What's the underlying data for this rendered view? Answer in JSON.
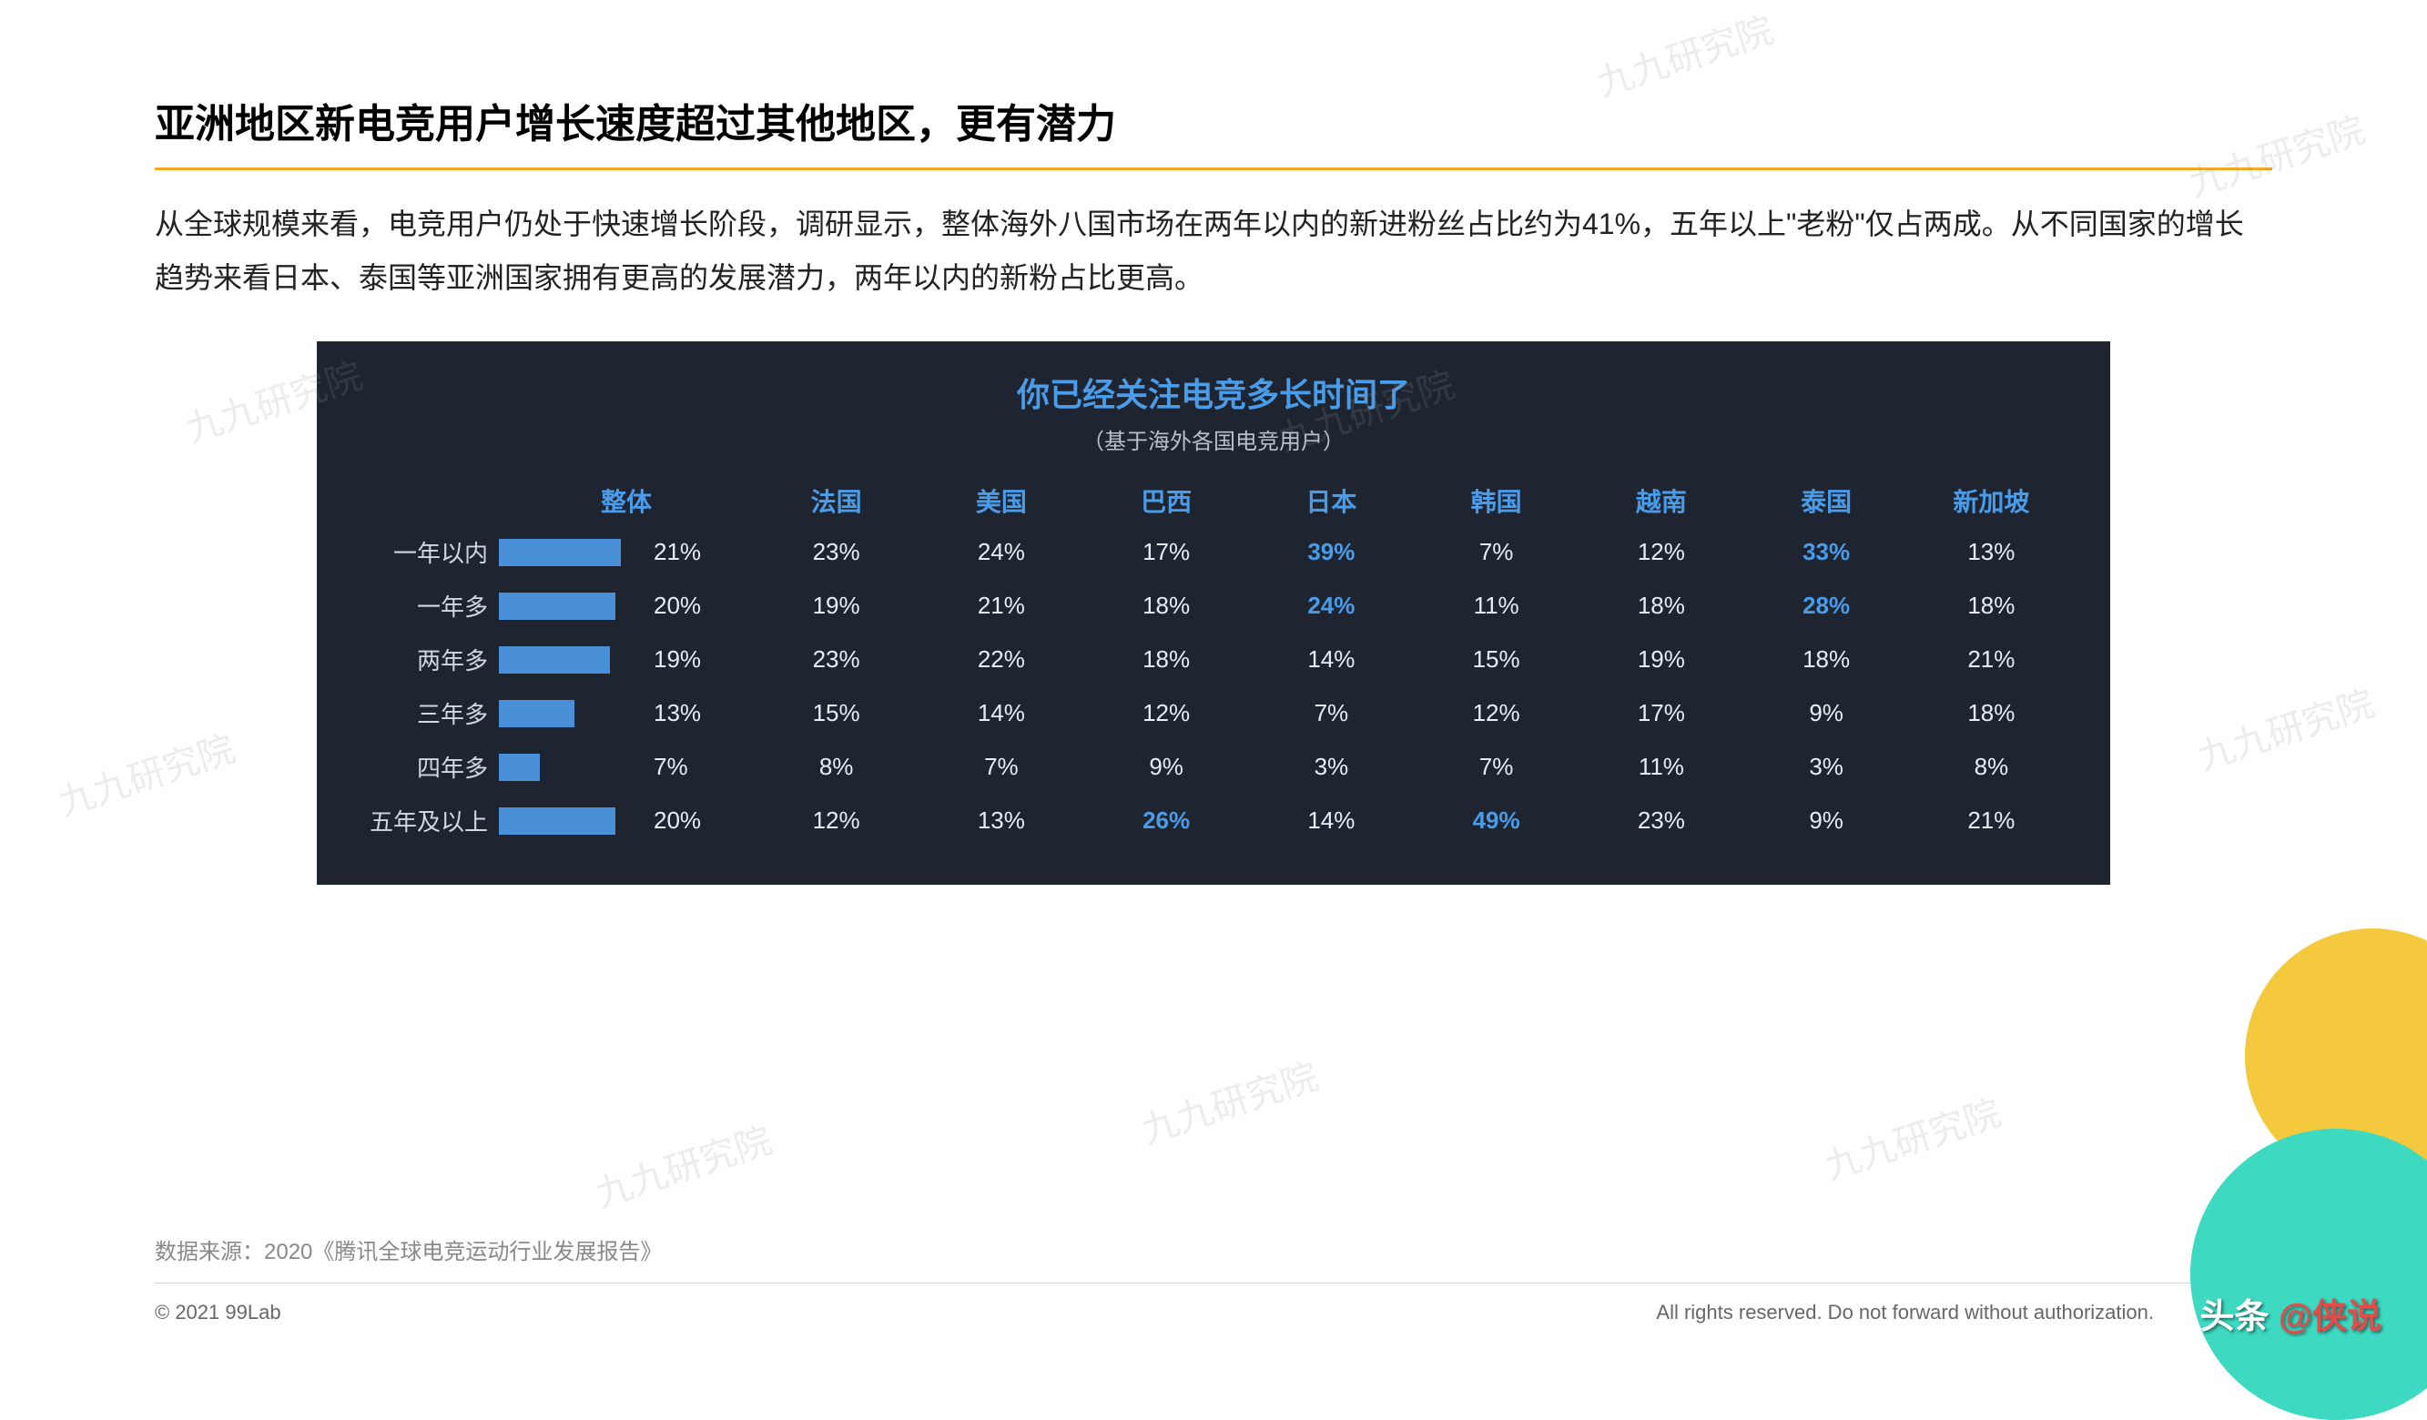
{
  "slide": {
    "title": "亚洲地区新电竞用户增长速度超过其他地区，更有潜力",
    "title_underline_color": "#f5a623",
    "description": "从全球规模来看，电竞用户仍处于快速增长阶段，调研显示，整体海外八国市场在两年以内的新进粉丝占比约为41%，五年以上\"老粉\"仅占两成。从不同国家的增长趋势来看日本、泰国等亚洲国家拥有更高的发展潜力，两年以内的新粉占比更高。",
    "source": "数据来源：2020《腾讯全球电竞运动行业发展报告》",
    "copyright": "© 2021 99Lab",
    "rights": "All rights reserved. Do not forward without authorization."
  },
  "chart": {
    "type": "table-with-bars",
    "title": "你已经关注电竞多长时间了",
    "subtitle": "（基于海外各国电竞用户）",
    "background_color": "#1e2530",
    "header_color": "#4a9be8",
    "text_color": "#e8eef5",
    "highlight_color": "#4a9be8",
    "bar_color": "#4a90d9",
    "bar_max_percent": 25,
    "overall_header": "整体",
    "countries": [
      "法国",
      "美国",
      "巴西",
      "日本",
      "韩国",
      "越南",
      "泰国",
      "新加坡"
    ],
    "rows": [
      {
        "label": "一年以内",
        "overall": 21,
        "values": [
          23,
          24,
          17,
          39,
          7,
          12,
          33,
          13
        ],
        "highlights": [
          false,
          false,
          false,
          true,
          false,
          false,
          true,
          false
        ]
      },
      {
        "label": "一年多",
        "overall": 20,
        "values": [
          19,
          21,
          18,
          24,
          11,
          18,
          28,
          18
        ],
        "highlights": [
          false,
          false,
          false,
          true,
          false,
          false,
          true,
          false
        ]
      },
      {
        "label": "两年多",
        "overall": 19,
        "values": [
          23,
          22,
          18,
          14,
          15,
          19,
          18,
          21
        ],
        "highlights": [
          false,
          false,
          false,
          false,
          false,
          false,
          false,
          false
        ]
      },
      {
        "label": "三年多",
        "overall": 13,
        "values": [
          15,
          14,
          12,
          7,
          12,
          17,
          9,
          18
        ],
        "highlights": [
          false,
          false,
          false,
          false,
          false,
          false,
          false,
          false
        ]
      },
      {
        "label": "四年多",
        "overall": 7,
        "values": [
          8,
          7,
          9,
          3,
          7,
          11,
          3,
          8
        ],
        "highlights": [
          false,
          false,
          false,
          false,
          false,
          false,
          false,
          false
        ]
      },
      {
        "label": "五年及以上",
        "overall": 20,
        "values": [
          12,
          13,
          26,
          14,
          49,
          23,
          9,
          21
        ],
        "highlights": [
          false,
          false,
          true,
          false,
          true,
          false,
          false,
          false
        ]
      }
    ]
  },
  "decor": {
    "circle_yellow_color": "#f5c93e",
    "circle_teal_color": "#3dd9c1"
  },
  "watermark": {
    "text": "九九研究院",
    "corner_head": "头条",
    "corner_at": "@侠说"
  }
}
